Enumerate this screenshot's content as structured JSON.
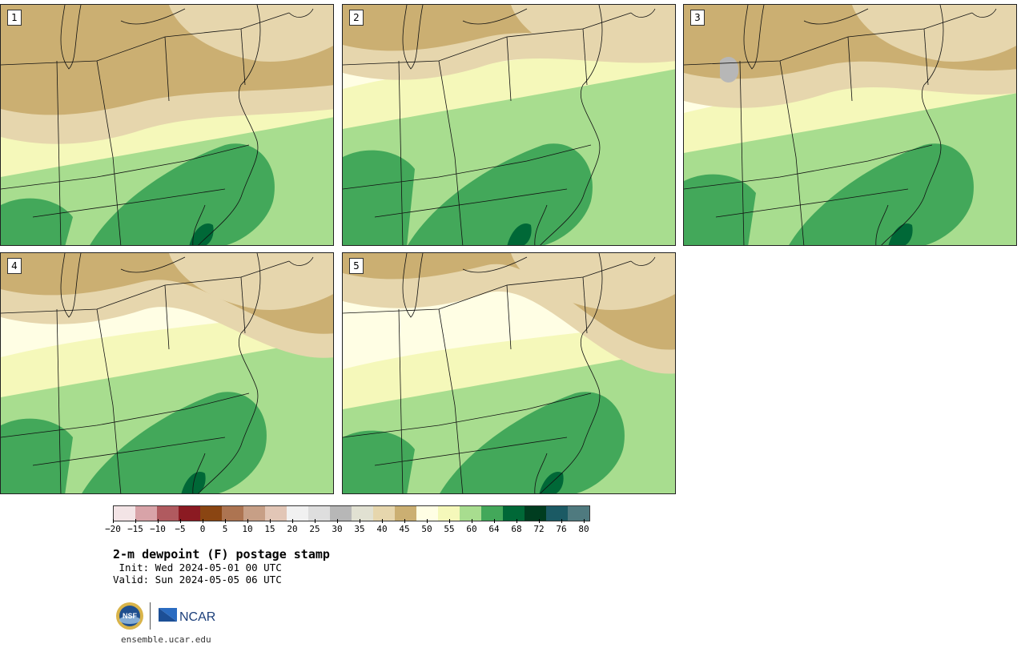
{
  "title": "2-m dewpoint (F) postage stamp",
  "init": " Init: Wed 2024-05-01 00 UTC",
  "valid": "Valid: Sun 2024-05-05 06 UTC",
  "site": "ensemble.ucar.edu",
  "logos": {
    "nsf": "NSF",
    "ncar": "NCAR"
  },
  "panels": [
    {
      "label": "1"
    },
    {
      "label": "2"
    },
    {
      "label": "3"
    },
    {
      "label": "4"
    },
    {
      "label": "5"
    }
  ],
  "colorbar": {
    "tick_labels": [
      "−20",
      "−15",
      "−10",
      "−5",
      "0",
      "5",
      "10",
      "15",
      "20",
      "25",
      "30",
      "35",
      "40",
      "45",
      "50",
      "55",
      "60",
      "64",
      "68",
      "72",
      "76",
      "80"
    ],
    "colors": [
      "#f3e4e6",
      "#d8a3a8",
      "#b05a5f",
      "#8b1a22",
      "#8a4512",
      "#ad7451",
      "#c79f86",
      "#e2c6b6",
      "#f1f1f1",
      "#dedede",
      "#b7b7b7",
      "#e1e1d2",
      "#e6d6ad",
      "#cbaf72",
      "#fffee4",
      "#f5f8ba",
      "#a8dd8f",
      "#43a85a",
      "#006837",
      "#003d20",
      "#1b5a64",
      "#4f7a7f"
    ]
  },
  "map_palette": {
    "tan_dark": "#cbaf72",
    "tan_light": "#e6d6ad",
    "grey": "#b7b7b7",
    "cream": "#fffee4",
    "pale_yellow": "#f5f8ba",
    "light_green": "#a8dd8f",
    "mid_green": "#43a85a",
    "dark_green": "#006837"
  }
}
